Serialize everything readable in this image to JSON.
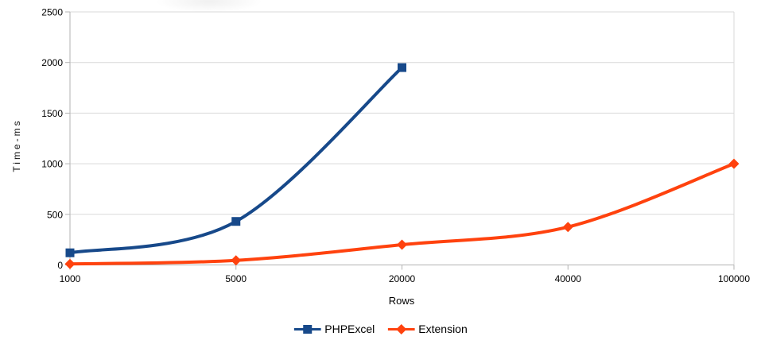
{
  "chart_data": {
    "type": "line",
    "title": "",
    "xlabel": "Rows",
    "ylabel": "Time-ms",
    "x_axis_type": "categorical",
    "category_labels": [
      "1000",
      "5000",
      "20000",
      "40000",
      "100000"
    ],
    "ylim": [
      0,
      2500
    ],
    "y_ticks": [
      0,
      500,
      1000,
      1500,
      2000,
      2500
    ],
    "y_tick_labels": [
      "0",
      "500",
      "1000",
      "1500",
      "2000",
      "2500"
    ],
    "grid": "horizontal-only",
    "smooth_lines": true,
    "legend_position": "bottom-center",
    "series": [
      {
        "name": "PHPExcel",
        "color": "#17498A",
        "marker": "square",
        "values": [
          120,
          430,
          1950,
          null,
          null
        ]
      },
      {
        "name": "Extension",
        "color": "#FF420E",
        "marker": "diamond",
        "values": [
          10,
          45,
          200,
          375,
          1000
        ]
      }
    ]
  },
  "style": {
    "background": "#ffffff",
    "gridline_color": "#d9d9d9",
    "axis_color": "#b3b3b3",
    "tick_color": "#b3b3b3",
    "label_color": "#000000"
  }
}
